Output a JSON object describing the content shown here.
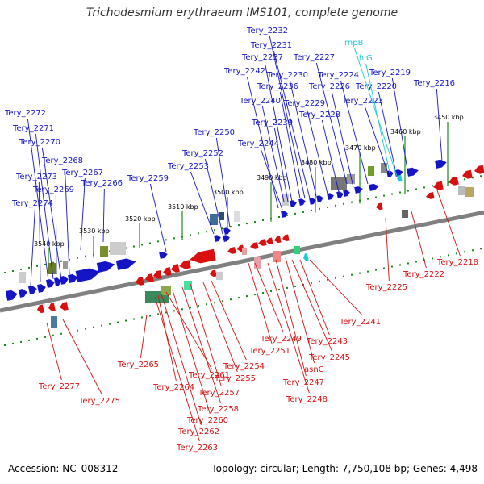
{
  "header": {
    "title": "Trichodesmium erythraeum IMS101, complete genome"
  },
  "footer": {
    "accession": "Accession: NC_008312",
    "summary": "Topology: circular; Length: 7,750,108 bp; Genes: 4,498"
  },
  "colors": {
    "forward": "#1515c8",
    "reverse": "#d81010",
    "rna": "#22c8d8",
    "backbone": "#808080",
    "ticks": "#1a8a1a"
  },
  "scale": {
    "unit": "kbp",
    "labels": [
      "3450 kbp",
      "3460 kbp",
      "3470 kbp",
      "3480 kbp",
      "3490 kbp",
      "3500 kbp",
      "3510 kbp",
      "3520 kbp",
      "3530 kbp",
      "3540 kbp"
    ]
  },
  "forward_genes": [
    "Tery_2216",
    "Tery_2219",
    "Tery_2220",
    "Tery_2223",
    "Tery_2224",
    "Tery_2226",
    "Tery_2227",
    "Tery_2228",
    "Tery_2229",
    "Tery_2230",
    "Tery_2231",
    "Tery_2232",
    "Tery_2236",
    "Tery_2237",
    "Tery_2239",
    "Tery_2240",
    "Tery_2242",
    "Tery_2244",
    "Tery_2250",
    "Tery_2252",
    "Tery_2253",
    "Tery_2259",
    "Tery_2266",
    "Tery_2267",
    "Tery_2268",
    "Tery_2269",
    "Tery_2270",
    "Tery_2271",
    "Tery_2272",
    "Tery_2273",
    "Tery_2274"
  ],
  "rna_genes": [
    "rnpB",
    "thiG"
  ],
  "reverse_genes": [
    "Tery_2218",
    "Tery_2222",
    "Tery_2225",
    "Tery_2241",
    "Tery_2243",
    "Tery_2245",
    "Tery_2247",
    "Tery_2248",
    "asnC",
    "Tery_2249",
    "Tery_2251",
    "Tery_2254",
    "Tery_2255",
    "Tery_2257",
    "Tery_2258",
    "Tery_2260",
    "Tery_2261",
    "Tery_2262",
    "Tery_2263",
    "Tery_2264",
    "Tery_2265",
    "Tery_2275",
    "Tery_2277"
  ]
}
